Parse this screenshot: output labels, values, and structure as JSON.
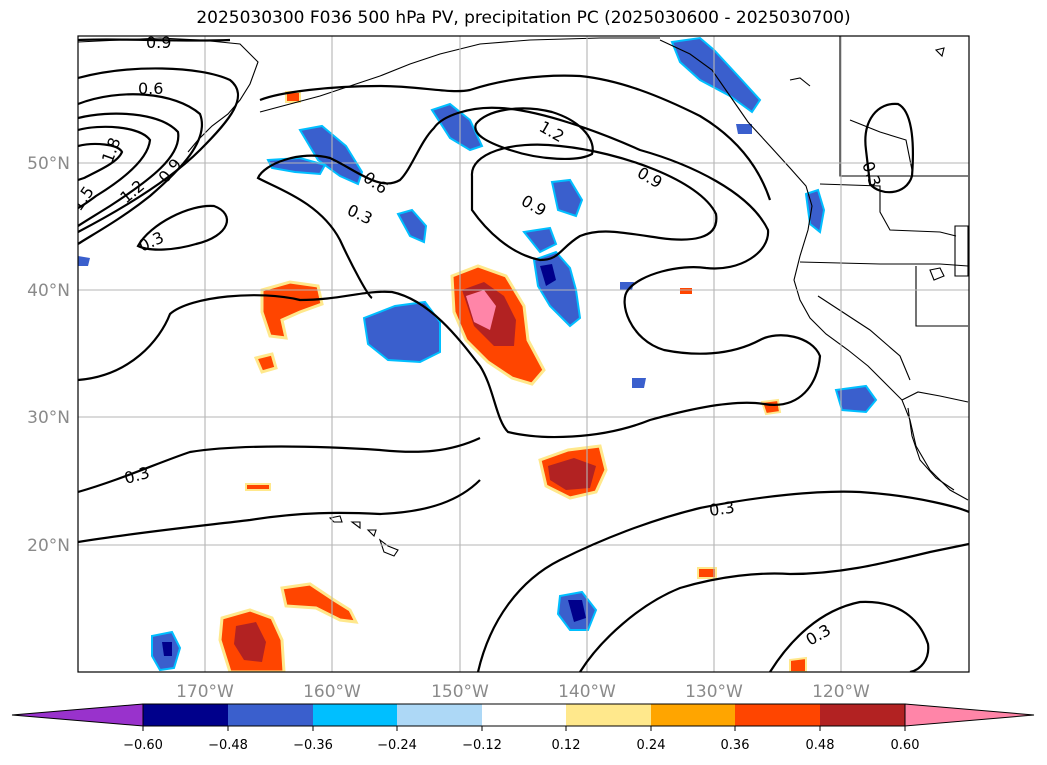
{
  "title": "2025030300 F036 500 hPa PV, precipitation PC (2025030600 - 2025030700)",
  "map": {
    "lat_labels": [
      "50°N",
      "40°N",
      "30°N",
      "20°N"
    ],
    "lon_labels": [
      "170°W",
      "160°W",
      "150°W",
      "140°W",
      "130°W",
      "120°W"
    ],
    "contour_labels": [
      "0.9",
      "0.6",
      "1.5",
      "1.2",
      "1.8",
      "0.9",
      "0.3",
      "0.6",
      "0.3",
      "1.2",
      "0.9",
      "0.9",
      "0.3",
      "0.3",
      "0.3",
      "0.3"
    ]
  },
  "colorbar": {
    "ticks": [
      "−0.60",
      "−0.48",
      "−0.36",
      "−0.24",
      "−0.12",
      "0.12",
      "0.24",
      "0.36",
      "0.48",
      "0.60"
    ],
    "colors": [
      "#9932cc",
      "#00008b",
      "#3a5fcd",
      "#00bfff",
      "#add8f6",
      "#ffffff",
      "#ffe88c",
      "#ffa500",
      "#ff4500",
      "#b22222",
      "#ff85a8"
    ]
  }
}
